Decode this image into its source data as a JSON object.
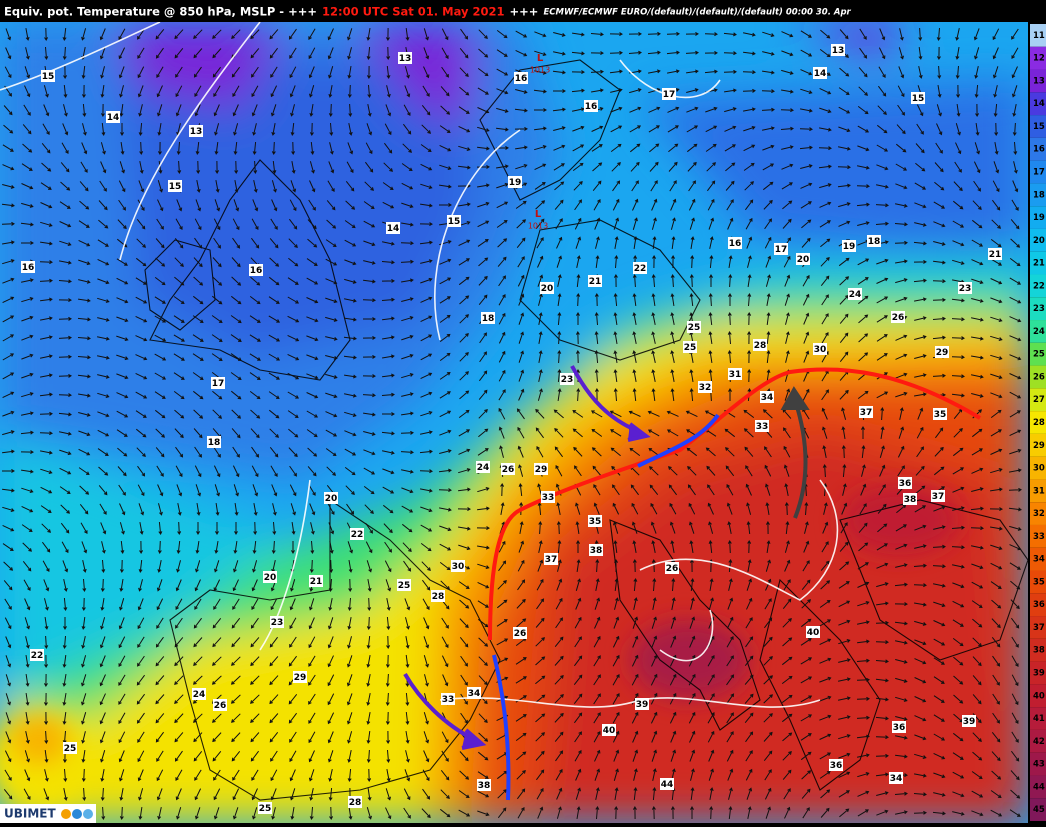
{
  "header": {
    "title": "Equiv. pot. Temperature @ 850 hPa, MSLP - +++",
    "time": "12:00 UTC Sat 01. May 2021",
    "separator": "+++",
    "model": "ECMWF/ECMWF EURO/(default)/(default)/(default) 00:00 30. Apr"
  },
  "colorbar": {
    "ticks": [
      11,
      12,
      13,
      14,
      15,
      16,
      17,
      18,
      19,
      20,
      21,
      22,
      23,
      24,
      25,
      26,
      27,
      28,
      29,
      30,
      31,
      32,
      33,
      34,
      35,
      36,
      37,
      38,
      39,
      40,
      41,
      42,
      43,
      44,
      45
    ],
    "colors": [
      "#a8d0f4",
      "#8a2be2",
      "#7a24d8",
      "#4a3ae0",
      "#2f5ee2",
      "#2d78e8",
      "#2088ee",
      "#1a9cf0",
      "#12acf0",
      "#10bcee",
      "#10c8e6",
      "#14d4d8",
      "#1cdcc0",
      "#2ee09a",
      "#5ee050",
      "#9ee024",
      "#d4e812",
      "#f6e600",
      "#f8cc00",
      "#f8b400",
      "#f89c00",
      "#f88400",
      "#f46e00",
      "#ee5a04",
      "#e84a08",
      "#e03e10",
      "#d83418",
      "#d02c20",
      "#c82428",
      "#c01e30",
      "#b61c3a",
      "#ac1a42",
      "#9e184a",
      "#901852",
      "#80185a"
    ]
  },
  "labels": [
    "15",
    "13",
    "16",
    "16",
    "17",
    "13",
    "14",
    "15",
    "14",
    "13",
    "15",
    "19",
    "14",
    "15",
    "16",
    "16",
    "16",
    "17",
    "19",
    "18",
    "20",
    "21",
    "22",
    "21",
    "20",
    "18",
    "23",
    "24",
    "26",
    "25",
    "25",
    "28",
    "30",
    "29",
    "17",
    "23",
    "32",
    "31",
    "34",
    "37",
    "35",
    "18",
    "33",
    "24",
    "26",
    "29",
    "36",
    "38",
    "37",
    "20",
    "33",
    "22",
    "35",
    "37",
    "38",
    "30",
    "26",
    "20",
    "21",
    "25",
    "28",
    "23",
    "26",
    "40",
    "22",
    "29",
    "24",
    "26",
    "33",
    "34",
    "39",
    "36",
    "39",
    "40",
    "25",
    "36",
    "38",
    "44",
    "34",
    "25",
    "28"
  ],
  "pressure_systems": [
    {
      "letter": "L",
      "value": "1013"
    },
    {
      "letter": "L",
      "value": "1013"
    }
  ],
  "logo": "UBIMET"
}
